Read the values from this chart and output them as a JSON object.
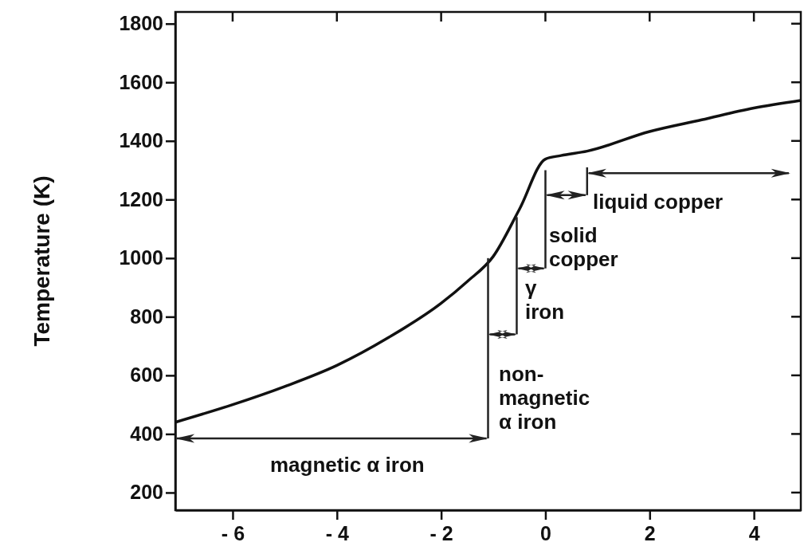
{
  "chart_data": {
    "type": "line",
    "ylabel": "Temperature (K)",
    "x": [
      -7.1,
      -6,
      -5,
      -4,
      -3,
      -2,
      -1.5,
      -1,
      -0.5,
      0,
      0.3,
      0.8,
      2,
      3,
      4,
      4.9
    ],
    "series": [
      {
        "color": "#111111",
        "values": [
          440,
          500,
          562,
          634,
          730,
          846,
          920,
          1006,
          1166,
          1338,
          1350,
          1365,
          1432,
          1472,
          1512,
          1538
        ]
      }
    ],
    "xlim": [
      -7.1,
      4.9
    ],
    "ylim": [
      140,
      1840
    ],
    "xticks": [
      {
        "value": -6,
        "label": "- 6"
      },
      {
        "value": -4,
        "label": "- 4"
      },
      {
        "value": -2,
        "label": "- 2"
      },
      0,
      2,
      4
    ],
    "yticks": [
      200,
      400,
      600,
      800,
      1000,
      1200,
      1400,
      1600,
      1800
    ],
    "annotations": [
      "magnetic  α  iron",
      {
        "text": "non-\nmagnetic\nα iron",
        "x": -1.1,
        "y": 1000
      },
      {
        "text": "γ\niron",
        "x": -0.55,
        "y": 1140
      },
      "solid\ncopper",
      "liquid  copper"
    ],
    "marker": "none",
    "line_style": "solid"
  }
}
